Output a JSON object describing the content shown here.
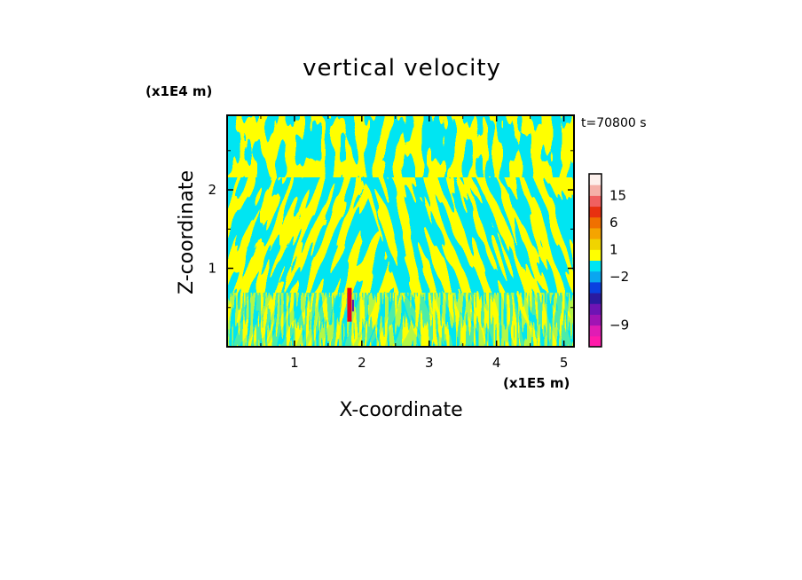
{
  "chart_data": {
    "type": "heatmap",
    "title": "vertical velocity",
    "xlabel": "X-coordinate",
    "ylabel": "Z-coordinate",
    "x_unit": "(x1E5 m)",
    "y_unit": "(x1E4 m)",
    "time_label": "t=70800 s",
    "xlim": [
      0,
      5.15
    ],
    "ylim": [
      0,
      2.95
    ],
    "x_ticks": [
      1,
      2,
      3,
      4,
      5
    ],
    "x_tick_labels": [
      "1",
      "2",
      "3",
      "4",
      "5"
    ],
    "y_ticks": [
      1,
      2
    ],
    "y_tick_labels": [
      "1",
      "2"
    ],
    "field_colors": {
      "negative": "#00E5F2",
      "positive": "#FFFF00",
      "strong_up": "#E6001E",
      "strong_down": "#5A1AAF"
    },
    "colorbar": {
      "levels": [
        {
          "color": "#FF1AAA"
        },
        {
          "color": "#E01CB4"
        },
        {
          "color": "#A014B4"
        },
        {
          "color": "#6E14B4"
        },
        {
          "color": "#2A1AA0"
        },
        {
          "color": "#0A40E0"
        },
        {
          "color": "#0AA6F0"
        },
        {
          "color": "#00E5F2"
        },
        {
          "color": "#FFFF00"
        },
        {
          "color": "#F0D400"
        },
        {
          "color": "#F5A400"
        },
        {
          "color": "#F07000"
        },
        {
          "color": "#E83010"
        },
        {
          "color": "#F06060"
        },
        {
          "color": "#F5B0A8"
        },
        {
          "color": "#FDF0EC"
        }
      ],
      "labels": [
        {
          "text": "15",
          "level": 14
        },
        {
          "text": "6",
          "level": 11.5
        },
        {
          "text": "1",
          "level": 9
        },
        {
          "text": "−2",
          "level": 6.5
        },
        {
          "text": "−9",
          "level": 2
        }
      ]
    }
  }
}
